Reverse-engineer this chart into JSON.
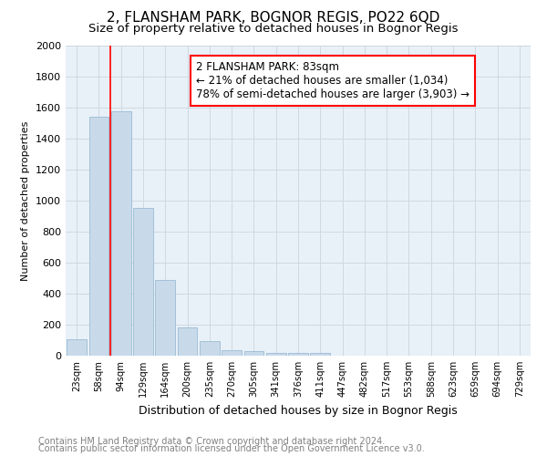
{
  "title": "2, FLANSHAM PARK, BOGNOR REGIS, PO22 6QD",
  "subtitle": "Size of property relative to detached houses in Bognor Regis",
  "xlabel": "Distribution of detached houses by size in Bognor Regis",
  "ylabel": "Number of detached properties",
  "footnote1": "Contains HM Land Registry data © Crown copyright and database right 2024.",
  "footnote2": "Contains public sector information licensed under the Open Government Licence v3.0.",
  "bar_labels": [
    "23sqm",
    "58sqm",
    "94sqm",
    "129sqm",
    "164sqm",
    "200sqm",
    "235sqm",
    "270sqm",
    "305sqm",
    "341sqm",
    "376sqm",
    "411sqm",
    "447sqm",
    "482sqm",
    "517sqm",
    "553sqm",
    "588sqm",
    "623sqm",
    "659sqm",
    "694sqm",
    "729sqm"
  ],
  "bar_values": [
    107,
    1540,
    1575,
    955,
    490,
    185,
    95,
    33,
    28,
    20,
    18,
    18,
    0,
    0,
    0,
    0,
    0,
    0,
    0,
    0,
    0
  ],
  "bar_color": "#c8daea",
  "bar_edge_color": "#9bbcd4",
  "vline_x": 1.5,
  "annotation_box_text": "2 FLANSHAM PARK: 83sqm\n← 21% of detached houses are smaller (1,034)\n78% of semi-detached houses are larger (3,903) →",
  "annotation_box_color": "red",
  "annotation_box_facecolor": "white",
  "vline_color": "red",
  "ylim": [
    0,
    2000
  ],
  "yticks": [
    0,
    200,
    400,
    600,
    800,
    1000,
    1200,
    1400,
    1600,
    1800,
    2000
  ],
  "grid_color": "#d0d8e0",
  "bg_color": "#ffffff",
  "plot_bg_color": "#e8f0f8",
  "title_fontsize": 11,
  "subtitle_fontsize": 9.5,
  "annotation_fontsize": 8.5,
  "footnote_fontsize": 7,
  "ylabel_fontsize": 8,
  "xlabel_fontsize": 9
}
